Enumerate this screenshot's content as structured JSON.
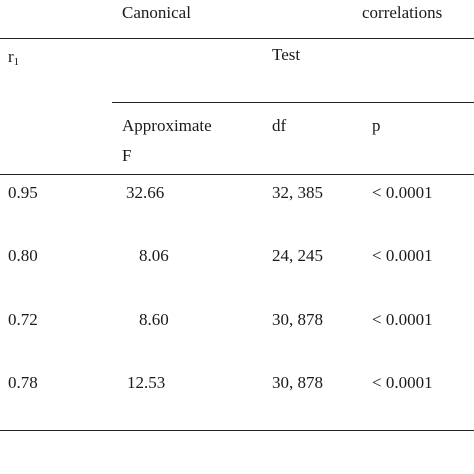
{
  "table": {
    "header_top": {
      "canonical": "Canonical",
      "correlations": "correlations"
    },
    "header_mid": {
      "r_symbol": "r",
      "r_subscript": "1",
      "test": "Test"
    },
    "header_sub": {
      "approx_line1": "Approximate",
      "approx_line2": "F",
      "df": "df",
      "p": "p"
    },
    "rows": [
      {
        "r1": "0.95",
        "f": "32.66",
        "df": "32, 385",
        "p": "< 0.0001"
      },
      {
        "r1": "0.80",
        "f": "8.06",
        "df": "24, 245",
        "p": "< 0.0001"
      },
      {
        "r1": "0.72",
        "f": "8.60",
        "df": "30, 878",
        "p": "< 0.0001"
      },
      {
        "r1": "0.78",
        "f": "12.53",
        "df": "30, 878",
        "p": "< 0.0001"
      }
    ]
  }
}
